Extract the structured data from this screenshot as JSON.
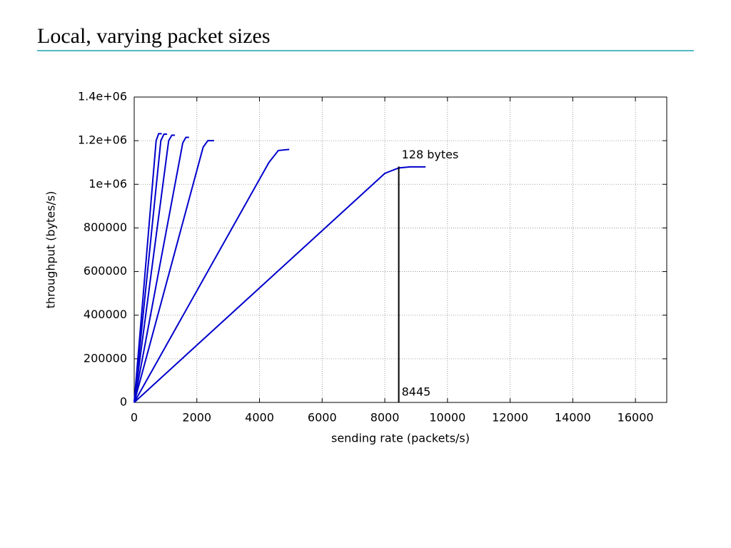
{
  "slide": {
    "title": "Local, varying packet sizes"
  },
  "chart_data": {
    "type": "line",
    "xlabel": "sending rate (packets/s)",
    "ylabel": "throughput (bytes/s)",
    "xlim": [
      0,
      17000
    ],
    "xticks": [
      0,
      2000,
      4000,
      6000,
      8000,
      10000,
      12000,
      14000,
      16000
    ],
    "ylim": [
      0,
      1400000
    ],
    "yticks": [
      0,
      200000,
      400000,
      600000,
      800000,
      {
        "value": 1000000,
        "label": "1e+06"
      },
      {
        "value": 1200000,
        "label": "1.2e+06"
      },
      {
        "value": 1400000,
        "label": "1.4e+06"
      }
    ],
    "grid": true,
    "series": [
      {
        "color": "#0000cc",
        "x": [
          0,
          8000,
          8445,
          8800,
          9300
        ],
        "values": [
          0,
          1050000,
          1075000,
          1080000,
          1080000
        ]
      },
      {
        "color": "#0000cc",
        "x": [
          0,
          4300,
          4600,
          4950
        ],
        "values": [
          0,
          1100000,
          1155000,
          1160000
        ]
      },
      {
        "color": "#0000cc",
        "x": [
          0,
          2200,
          2350,
          2550
        ],
        "values": [
          0,
          1170000,
          1200000,
          1200000
        ]
      },
      {
        "color": "#0000cc",
        "x": [
          0,
          1550,
          1650,
          1750
        ],
        "values": [
          0,
          1190000,
          1215000,
          1215000
        ]
      },
      {
        "color": "#0000cc",
        "x": [
          0,
          1100,
          1200,
          1300
        ],
        "values": [
          0,
          1200000,
          1225000,
          1225000
        ]
      },
      {
        "color": "#0000cc",
        "x": [
          0,
          850,
          950,
          1050
        ],
        "values": [
          0,
          1200000,
          1230000,
          1230000
        ]
      },
      {
        "color": "#0000cc",
        "x": [
          0,
          700,
          780,
          880
        ],
        "values": [
          0,
          1200000,
          1232000,
          1232000
        ]
      }
    ],
    "annotation": "128 bytes",
    "marker_x": 8445
  }
}
